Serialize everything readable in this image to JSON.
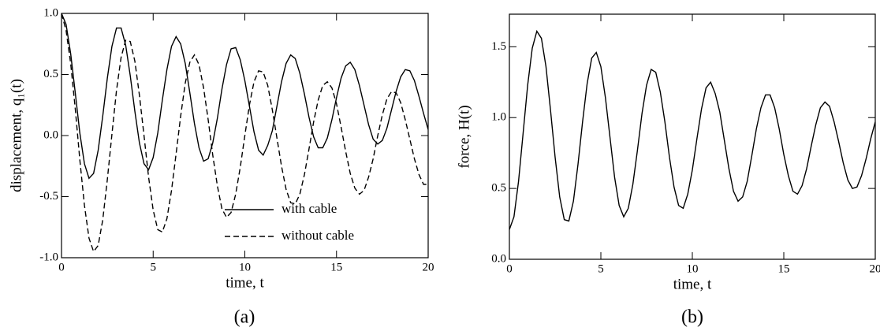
{
  "chart_data": [
    {
      "type": "line",
      "caption": "(a)",
      "xlabel": "time, t",
      "ylabel": "displacement, q₁(t)",
      "xlim": [
        0,
        20
      ],
      "ylim": [
        -1,
        1
      ],
      "xticks": [
        0,
        5,
        10,
        15,
        20
      ],
      "yticks": [
        {
          "value": -1,
          "label": "-1.0"
        },
        -0.5,
        {
          "value": 0,
          "label": "0.0"
        },
        0.5,
        {
          "value": 1,
          "label": "1.0"
        }
      ],
      "legend": "lower right",
      "x": [
        0,
        0.25,
        0.5,
        0.75,
        1,
        1.25,
        1.5,
        1.75,
        2,
        2.25,
        2.5,
        2.75,
        3,
        3.25,
        3.5,
        3.75,
        4,
        4.25,
        4.5,
        4.75,
        5,
        5.25,
        5.5,
        5.75,
        6,
        6.25,
        6.5,
        6.75,
        7,
        7.25,
        7.5,
        7.75,
        8,
        8.25,
        8.5,
        8.75,
        9,
        9.25,
        9.5,
        9.75,
        10,
        10.25,
        10.5,
        10.75,
        11,
        11.25,
        11.5,
        11.75,
        12,
        12.25,
        12.5,
        12.75,
        13,
        13.25,
        13.5,
        13.75,
        14,
        14.25,
        14.5,
        14.75,
        15,
        15.25,
        15.5,
        15.75,
        16,
        16.25,
        16.5,
        16.75,
        17,
        17.25,
        17.5,
        17.75,
        18,
        18.25,
        18.5,
        18.75,
        19,
        19.25,
        19.5,
        19.75,
        20
      ],
      "series": [
        {
          "name": "with cable",
          "color": "#000000",
          "dash": "solid",
          "values": [
            1.0,
            0.91,
            0.67,
            0.35,
            0.02,
            -0.23,
            -0.35,
            -0.31,
            -0.12,
            0.16,
            0.47,
            0.73,
            0.88,
            0.88,
            0.74,
            0.49,
            0.2,
            -0.06,
            -0.23,
            -0.28,
            -0.18,
            0.02,
            0.29,
            0.54,
            0.73,
            0.81,
            0.75,
            0.59,
            0.35,
            0.1,
            -0.1,
            -0.21,
            -0.19,
            -0.06,
            0.14,
            0.38,
            0.58,
            0.71,
            0.72,
            0.62,
            0.45,
            0.24,
            0.03,
            -0.12,
            -0.16,
            -0.08,
            0.04,
            0.24,
            0.44,
            0.59,
            0.66,
            0.63,
            0.51,
            0.34,
            0.15,
            -0.01,
            -0.1,
            -0.1,
            -0.02,
            0.13,
            0.31,
            0.47,
            0.57,
            0.6,
            0.54,
            0.41,
            0.25,
            0.09,
            -0.03,
            -0.07,
            -0.04,
            0.06,
            0.21,
            0.36,
            0.48,
            0.54,
            0.53,
            0.45,
            0.32,
            0.18,
            0.05
          ]
        },
        {
          "name": "without cable",
          "color": "#000000",
          "dash": "dashed",
          "values": [
            1.0,
            0.86,
            0.59,
            0.22,
            -0.2,
            -0.57,
            -0.84,
            -0.95,
            -0.9,
            -0.69,
            -0.36,
            0.01,
            0.37,
            0.64,
            0.78,
            0.77,
            0.61,
            0.33,
            0.0,
            -0.34,
            -0.61,
            -0.77,
            -0.79,
            -0.68,
            -0.45,
            -0.15,
            0.16,
            0.43,
            0.6,
            0.66,
            0.58,
            0.39,
            0.13,
            -0.16,
            -0.41,
            -0.6,
            -0.67,
            -0.63,
            -0.48,
            -0.26,
            0.0,
            0.25,
            0.44,
            0.53,
            0.52,
            0.41,
            0.21,
            -0.02,
            -0.25,
            -0.44,
            -0.55,
            -0.56,
            -0.48,
            -0.32,
            -0.11,
            0.11,
            0.29,
            0.41,
            0.44,
            0.39,
            0.26,
            0.07,
            -0.13,
            -0.31,
            -0.43,
            -0.48,
            -0.45,
            -0.34,
            -0.19,
            0.0,
            0.17,
            0.3,
            0.36,
            0.35,
            0.27,
            0.13,
            -0.03,
            -0.19,
            -0.32,
            -0.4,
            -0.4
          ]
        }
      ]
    },
    {
      "type": "line",
      "caption": "(b)",
      "xlabel": "time, t",
      "ylabel": "force, H(t)",
      "xlim": [
        0,
        20
      ],
      "ylim": [
        0,
        1.73
      ],
      "xticks": [
        0,
        5,
        10,
        15,
        20
      ],
      "yticks": [
        {
          "value": 0,
          "label": "0.0"
        },
        0.5,
        {
          "value": 1,
          "label": "1.0"
        },
        1.5
      ],
      "x": [
        0,
        0.25,
        0.5,
        0.75,
        1,
        1.25,
        1.5,
        1.75,
        2,
        2.25,
        2.5,
        2.75,
        3,
        3.25,
        3.5,
        3.75,
        4,
        4.25,
        4.5,
        4.75,
        5,
        5.25,
        5.5,
        5.75,
        6,
        6.25,
        6.5,
        6.75,
        7,
        7.25,
        7.5,
        7.75,
        8,
        8.25,
        8.5,
        8.75,
        9,
        9.25,
        9.5,
        9.75,
        10,
        10.25,
        10.5,
        10.75,
        11,
        11.25,
        11.5,
        11.75,
        12,
        12.25,
        12.5,
        12.75,
        13,
        13.25,
        13.5,
        13.75,
        14,
        14.25,
        14.5,
        14.75,
        15,
        15.25,
        15.5,
        15.75,
        16,
        16.25,
        16.5,
        16.75,
        17,
        17.25,
        17.5,
        17.75,
        18,
        18.25,
        18.5,
        18.75,
        19,
        19.25,
        19.5,
        19.75,
        20
      ],
      "series": [
        {
          "color": "#000000",
          "dash": "solid",
          "values": [
            0.21,
            0.3,
            0.55,
            0.89,
            1.23,
            1.49,
            1.61,
            1.56,
            1.36,
            1.05,
            0.72,
            0.44,
            0.28,
            0.27,
            0.41,
            0.67,
            0.97,
            1.24,
            1.42,
            1.46,
            1.36,
            1.14,
            0.86,
            0.58,
            0.38,
            0.3,
            0.36,
            0.53,
            0.77,
            1.03,
            1.23,
            1.34,
            1.32,
            1.18,
            0.97,
            0.72,
            0.51,
            0.38,
            0.36,
            0.46,
            0.63,
            0.85,
            1.06,
            1.21,
            1.25,
            1.17,
            1.04,
            0.84,
            0.64,
            0.48,
            0.41,
            0.44,
            0.55,
            0.73,
            0.92,
            1.07,
            1.16,
            1.16,
            1.07,
            0.92,
            0.74,
            0.59,
            0.48,
            0.46,
            0.52,
            0.64,
            0.8,
            0.95,
            1.07,
            1.11,
            1.08,
            0.97,
            0.83,
            0.68,
            0.56,
            0.5,
            0.51,
            0.59,
            0.71,
            0.85,
            0.97
          ]
        }
      ]
    }
  ]
}
